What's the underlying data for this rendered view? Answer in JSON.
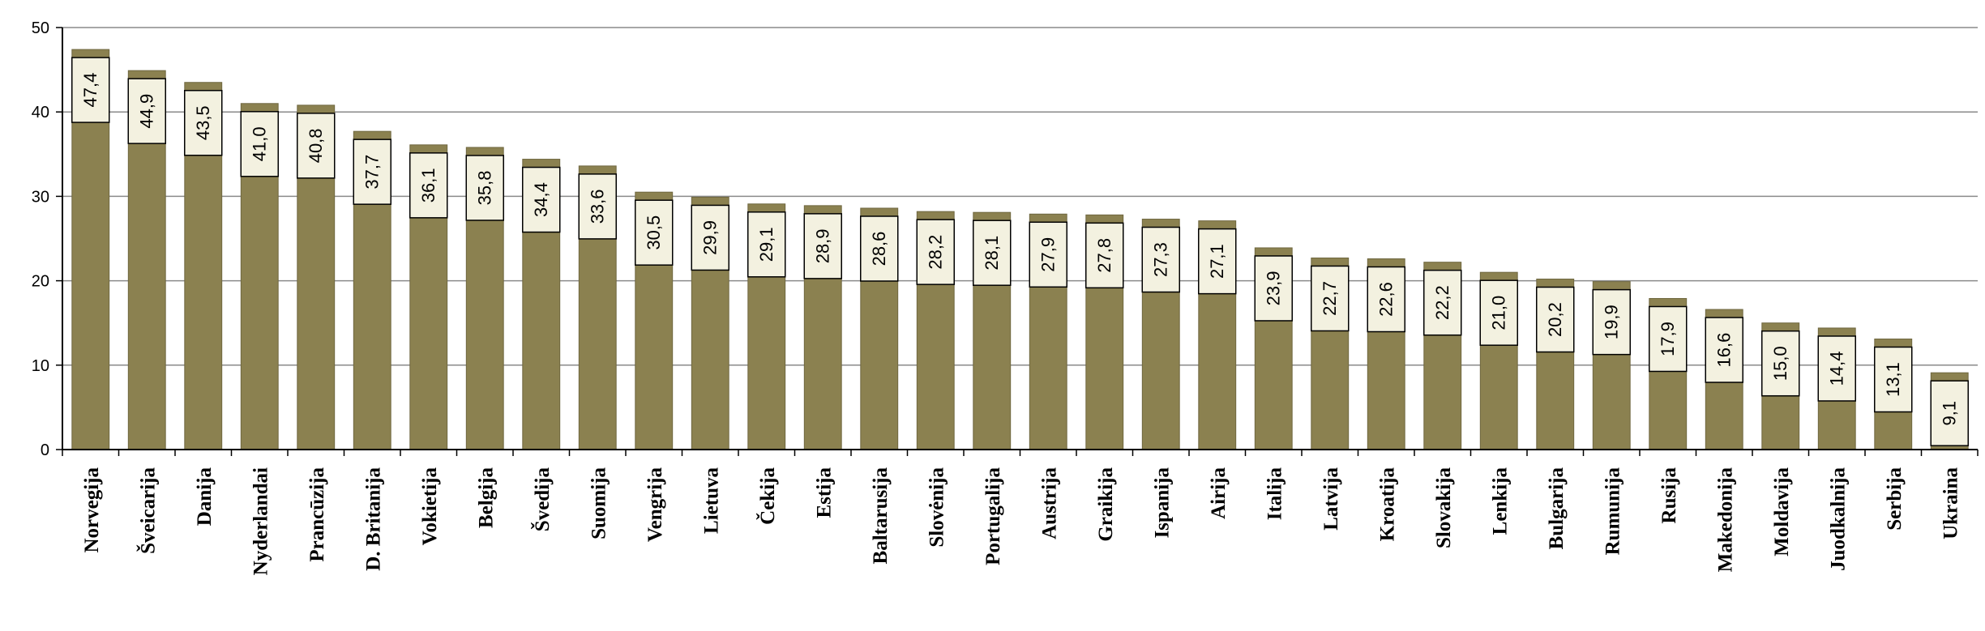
{
  "chart_data": {
    "type": "bar",
    "categories": [
      "Norvegija",
      "Šveicarija",
      "Danija",
      "Nyderlandai",
      "Prancūzija",
      "D. Britanija",
      "Vokietija",
      "Belgija",
      "Švedija",
      "Suomija",
      "Vengrija",
      "Lietuva",
      "Čekija",
      "Estija",
      "Baltarusija",
      "Slovėnija",
      "Portugalija",
      "Austrija",
      "Graikija",
      "Ispanija",
      "Airija",
      "Italija",
      "Latvija",
      "Kroatija",
      "Slovakija",
      "Lenkija",
      "Bulgarija",
      "Rumunija",
      "Rusija",
      "Makedonija",
      "Moldavija",
      "Juodkalnija",
      "Serbija",
      "Ukraina"
    ],
    "values": [
      47.4,
      44.9,
      43.5,
      41.0,
      40.8,
      37.7,
      36.1,
      35.8,
      34.4,
      33.6,
      30.5,
      29.9,
      29.1,
      28.9,
      28.6,
      28.2,
      28.1,
      27.9,
      27.8,
      27.3,
      27.1,
      23.9,
      22.7,
      22.6,
      22.2,
      21.0,
      20.2,
      19.9,
      17.9,
      16.6,
      15.0,
      14.4,
      13.1,
      9.1
    ],
    "value_labels": [
      "47,4",
      "44,9",
      "43,5",
      "41,0",
      "40,8",
      "37,7",
      "36,1",
      "35,8",
      "34,4",
      "33,6",
      "30,5",
      "29,9",
      "29,1",
      "28,9",
      "28,6",
      "28,2",
      "28,1",
      "27,9",
      "27,8",
      "27,3",
      "27,1",
      "23,9",
      "22,7",
      "22,6",
      "22,2",
      "21,0",
      "20,2",
      "19,9",
      "17,9",
      "16,6",
      "15,0",
      "14,4",
      "13,1",
      "9,1"
    ],
    "ylim": [
      0,
      50
    ],
    "yticks": [
      "0",
      "10",
      "20",
      "30",
      "40",
      "50"
    ],
    "grid": true,
    "title": "",
    "xlabel": "",
    "ylabel": "",
    "colors": {
      "bar": "#8b8150",
      "bar_edge": "#6f6740",
      "label_fill": "#f3f1e0",
      "label_border": "#000000",
      "grid": "#8a8a8a"
    }
  }
}
